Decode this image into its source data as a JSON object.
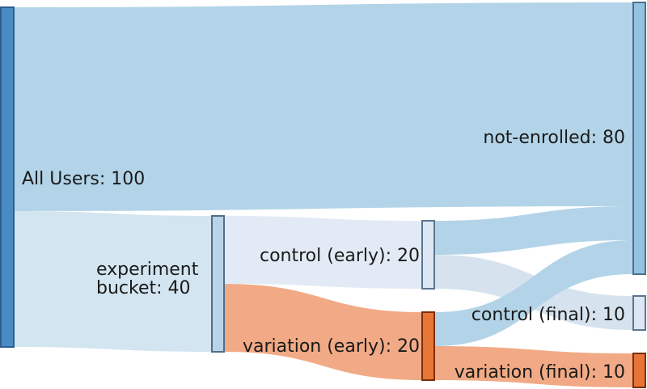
{
  "chart_data": {
    "type": "sankey",
    "nodes": [
      {
        "id": "all",
        "label": "All Users: 100",
        "value": 100,
        "color": "#4a8cc4",
        "border": "#2e5f8c"
      },
      {
        "id": "bucket",
        "label_lines": [
          "experiment",
          "bucket: 40"
        ],
        "value": 40,
        "color": "#b9d3e8",
        "border": "#4f6f8a"
      },
      {
        "id": "ctrl_early",
        "label": "control (early): 20",
        "value": 20,
        "color": "#dde7f3",
        "border": "#5b7590"
      },
      {
        "id": "var_early",
        "label": "variation (early): 20",
        "value": 20,
        "color": "#e87538",
        "border": "#7a2e08"
      },
      {
        "id": "not_enrolled",
        "label": "not-enrolled: 80",
        "value": 80,
        "color": "#92c3e1",
        "border": "#4f6f8a"
      },
      {
        "id": "ctrl_final",
        "label": "control (final): 10",
        "value": 10,
        "color": "#dde7f3",
        "border": "#5b7590"
      },
      {
        "id": "var_final",
        "label": "variation (final): 10",
        "value": 10,
        "color": "#e87538",
        "border": "#7a2e08"
      }
    ],
    "links": [
      {
        "source": "all",
        "target": "not_enrolled",
        "value": 60,
        "color": "#b3d4e8"
      },
      {
        "source": "all",
        "target": "bucket",
        "value": 40,
        "color": "#d2e5f0"
      },
      {
        "source": "bucket",
        "target": "ctrl_early",
        "value": 20,
        "color": "#e2ebf5"
      },
      {
        "source": "bucket",
        "target": "var_early",
        "value": 20,
        "color": "#f1aa85"
      },
      {
        "source": "ctrl_early",
        "target": "not_enrolled",
        "value": 10,
        "color": "#b3d4e8"
      },
      {
        "source": "ctrl_early",
        "target": "ctrl_final",
        "value": 10,
        "color": "#d6e3ef"
      },
      {
        "source": "var_early",
        "target": "not_enrolled",
        "value": 10,
        "color": "#b3d4e8"
      },
      {
        "source": "var_early",
        "target": "var_final",
        "value": 10,
        "color": "#f1aa85"
      }
    ]
  }
}
